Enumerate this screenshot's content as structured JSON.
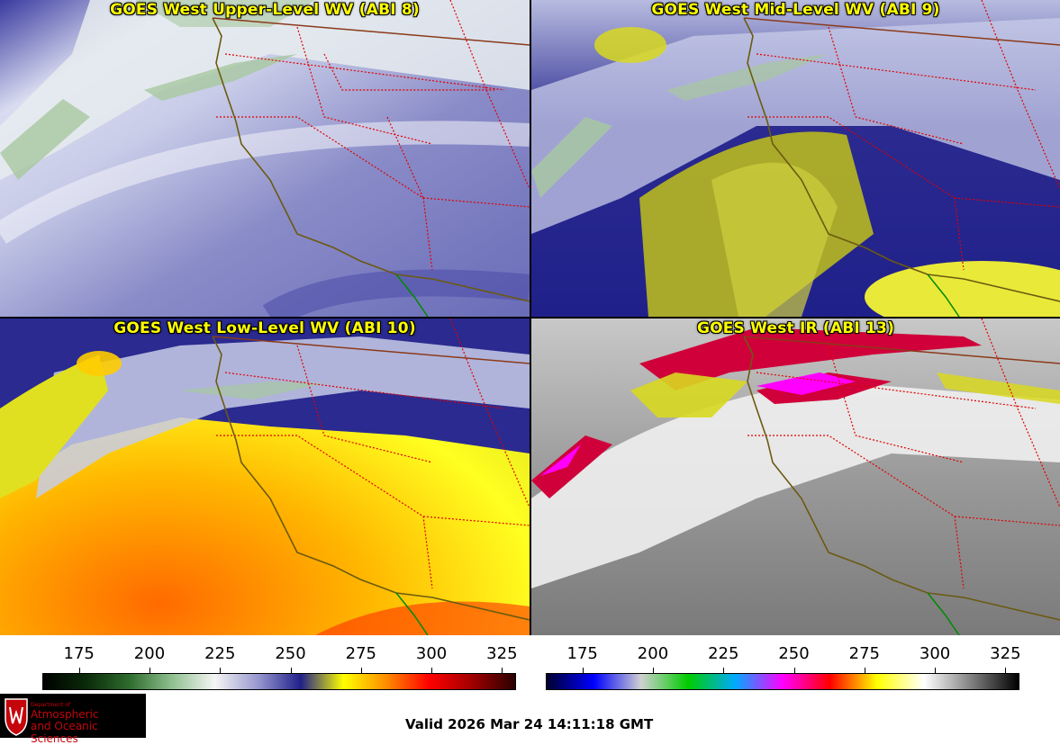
{
  "panels": [
    {
      "id": "upper",
      "title": "GOES West Upper-Level WV (ABI 8)"
    },
    {
      "id": "mid",
      "title": "GOES West Mid-Level WV (ABI 9)"
    },
    {
      "id": "low",
      "title": "GOES West Low-Level WV (ABI 10)"
    },
    {
      "id": "ir",
      "title": "GOES West IR (ABI 13)"
    }
  ],
  "colorbars": {
    "wv": {
      "ticks": [
        "175",
        "200",
        "225",
        "250",
        "275",
        "300",
        "325"
      ],
      "range": [
        162,
        330
      ],
      "colors": [
        "#000000",
        "#0a2a0a",
        "#2e6b2e",
        "#8fc08f",
        "#f5f5f5",
        "#9898d0",
        "#20208a",
        "#ffff00",
        "#ff8c00",
        "#ff0000",
        "#a00000",
        "#2a0000"
      ]
    },
    "ir": {
      "ticks": [
        "175",
        "200",
        "225",
        "250",
        "275",
        "300",
        "325"
      ],
      "range": [
        162,
        330
      ],
      "colors": [
        "#000030",
        "#0000ff",
        "#d0d0d0",
        "#00cc00",
        "#00aaff",
        "#ff00ff",
        "#ff0000",
        "#ffff00",
        "#ffffff",
        "#808080",
        "#000000"
      ]
    }
  },
  "valid_time": "Valid 2026 Mar 24 14:11:18 GMT",
  "logo": {
    "line1": "Department of",
    "line2": "Atmospheric",
    "line3": "and Oceanic Sciences",
    "icon": "uw-crest-icon"
  }
}
